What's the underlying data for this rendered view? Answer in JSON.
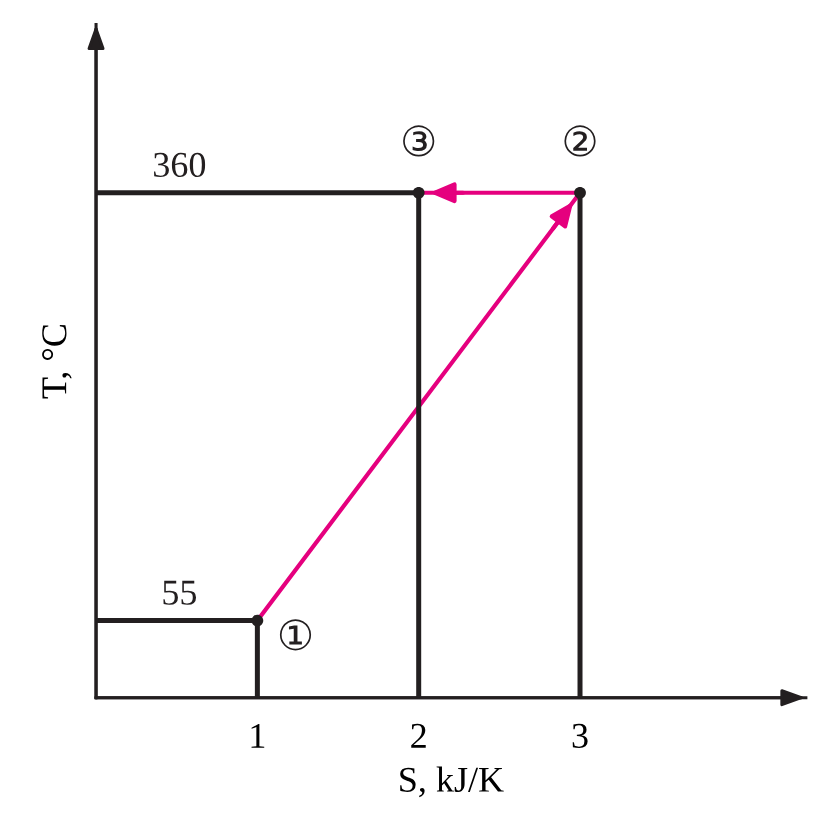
{
  "chart_data": {
    "type": "line",
    "xlabel": "S, kJ/K",
    "ylabel": "T, °C",
    "xlim": [
      0,
      4.4
    ],
    "xticks": [
      1,
      2,
      3
    ],
    "ylim": [
      0,
      480
    ],
    "tick_labels": "x",
    "grid": false,
    "series": [
      {
        "color": "#231f20",
        "x": [
          0,
          1
        ],
        "values": [
          55,
          55
        ],
        "value_labels": [
          "55",
          null
        ]
      },
      {
        "color": "#231f20",
        "x": [
          0,
          2
        ],
        "values": [
          360,
          360
        ],
        "value_labels": [
          "360",
          null
        ]
      },
      {
        "color": "#e5007e",
        "x": [
          1,
          3,
          2
        ],
        "values": [
          55,
          360,
          360
        ]
      },
      {
        "type": "lollipop",
        "color": "#231f20",
        "x": [
          1,
          3,
          2
        ],
        "values": [
          55,
          360,
          360
        ],
        "marker": "circle"
      }
    ],
    "annotations": [
      {
        "text": "①",
        "x": 1,
        "y": 55
      },
      {
        "text": "②",
        "x": 3,
        "y": 360
      },
      {
        "text": "③",
        "x": 2,
        "y": 360
      }
    ]
  }
}
